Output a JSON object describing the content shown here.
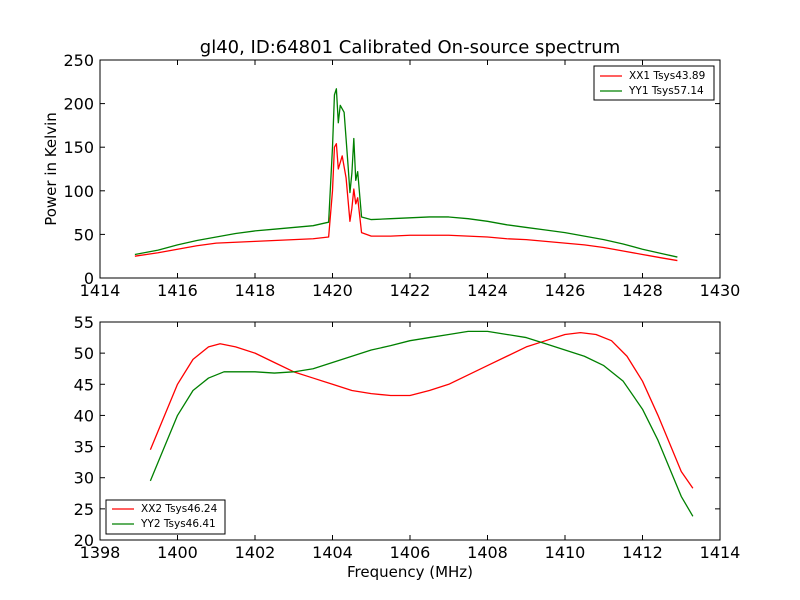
{
  "chart_data": [
    {
      "type": "line",
      "title": "gl40, ID:64801 Calibrated On-source spectrum",
      "xlabel": "",
      "ylabel": "Power in Kelvin",
      "xlim": [
        1414,
        1430
      ],
      "ylim": [
        0,
        250
      ],
      "xticks": [
        1414,
        1416,
        1418,
        1420,
        1422,
        1424,
        1426,
        1428,
        1430
      ],
      "yticks": [
        0,
        50,
        100,
        150,
        200,
        250
      ],
      "grid": false,
      "legend": "top-right",
      "series": [
        {
          "name": "XX1 Tsys43.89",
          "color": "#ff0000",
          "points": [
            [
              1414.9,
              25
            ],
            [
              1415.5,
              29
            ],
            [
              1416.0,
              33
            ],
            [
              1416.5,
              37
            ],
            [
              1417.0,
              40
            ],
            [
              1417.5,
              41
            ],
            [
              1418.0,
              42
            ],
            [
              1418.5,
              43
            ],
            [
              1419.0,
              44
            ],
            [
              1419.5,
              45
            ],
            [
              1419.9,
              47
            ],
            [
              1420.0,
              100
            ],
            [
              1420.05,
              150
            ],
            [
              1420.1,
              154
            ],
            [
              1420.15,
              125
            ],
            [
              1420.25,
              140
            ],
            [
              1420.35,
              115
            ],
            [
              1420.45,
              65
            ],
            [
              1420.5,
              80
            ],
            [
              1420.55,
              102
            ],
            [
              1420.6,
              85
            ],
            [
              1420.65,
              92
            ],
            [
              1420.75,
              52
            ],
            [
              1421.0,
              48
            ],
            [
              1421.5,
              48
            ],
            [
              1422.0,
              49
            ],
            [
              1422.5,
              49
            ],
            [
              1423.0,
              49
            ],
            [
              1423.5,
              48
            ],
            [
              1424.0,
              47
            ],
            [
              1424.5,
              45
            ],
            [
              1425.0,
              44
            ],
            [
              1425.5,
              42
            ],
            [
              1426.0,
              40
            ],
            [
              1426.5,
              38
            ],
            [
              1427.0,
              35
            ],
            [
              1427.5,
              31
            ],
            [
              1428.0,
              27
            ],
            [
              1428.5,
              23
            ],
            [
              1428.9,
              20
            ]
          ]
        },
        {
          "name": "YY1 Tsys57.14",
          "color": "#008000",
          "points": [
            [
              1414.9,
              27
            ],
            [
              1415.5,
              32
            ],
            [
              1416.0,
              38
            ],
            [
              1416.5,
              43
            ],
            [
              1417.0,
              47
            ],
            [
              1417.5,
              51
            ],
            [
              1418.0,
              54
            ],
            [
              1418.5,
              56
            ],
            [
              1419.0,
              58
            ],
            [
              1419.5,
              60
            ],
            [
              1419.9,
              64
            ],
            [
              1420.0,
              150
            ],
            [
              1420.05,
              210
            ],
            [
              1420.1,
              217
            ],
            [
              1420.15,
              178
            ],
            [
              1420.2,
              198
            ],
            [
              1420.3,
              190
            ],
            [
              1420.4,
              130
            ],
            [
              1420.45,
              98
            ],
            [
              1420.5,
              120
            ],
            [
              1420.55,
              160
            ],
            [
              1420.6,
              112
            ],
            [
              1420.65,
              122
            ],
            [
              1420.75,
              70
            ],
            [
              1421.0,
              67
            ],
            [
              1421.5,
              68
            ],
            [
              1422.0,
              69
            ],
            [
              1422.5,
              70
            ],
            [
              1423.0,
              70
            ],
            [
              1423.5,
              68
            ],
            [
              1424.0,
              65
            ],
            [
              1424.5,
              61
            ],
            [
              1425.0,
              58
            ],
            [
              1425.5,
              55
            ],
            [
              1426.0,
              52
            ],
            [
              1426.5,
              48
            ],
            [
              1427.0,
              44
            ],
            [
              1427.5,
              39
            ],
            [
              1428.0,
              33
            ],
            [
              1428.5,
              28
            ],
            [
              1428.9,
              24
            ]
          ]
        }
      ]
    },
    {
      "type": "line",
      "title": "",
      "xlabel": "Frequency (MHz)",
      "ylabel": "",
      "xlim": [
        1398,
        1414
      ],
      "ylim": [
        20,
        55
      ],
      "xticks": [
        1398,
        1400,
        1402,
        1404,
        1406,
        1408,
        1410,
        1412,
        1414
      ],
      "yticks": [
        20,
        25,
        30,
        35,
        40,
        45,
        50,
        55
      ],
      "grid": false,
      "legend": "bottom-left",
      "series": [
        {
          "name": "XX2 Tsys46.24",
          "color": "#ff0000",
          "points": [
            [
              1399.3,
              34.5
            ],
            [
              1399.6,
              39
            ],
            [
              1400.0,
              45
            ],
            [
              1400.4,
              49
            ],
            [
              1400.8,
              51
            ],
            [
              1401.1,
              51.5
            ],
            [
              1401.5,
              51
            ],
            [
              1402.0,
              50
            ],
            [
              1402.5,
              48.5
            ],
            [
              1403.0,
              47
            ],
            [
              1403.5,
              46
            ],
            [
              1404.0,
              45
            ],
            [
              1404.5,
              44
            ],
            [
              1405.0,
              43.5
            ],
            [
              1405.5,
              43.2
            ],
            [
              1406.0,
              43.2
            ],
            [
              1406.5,
              44
            ],
            [
              1407.0,
              45
            ],
            [
              1407.5,
              46.5
            ],
            [
              1408.0,
              48
            ],
            [
              1408.5,
              49.5
            ],
            [
              1409.0,
              51
            ],
            [
              1409.5,
              52
            ],
            [
              1410.0,
              53
            ],
            [
              1410.4,
              53.3
            ],
            [
              1410.8,
              53
            ],
            [
              1411.2,
              52
            ],
            [
              1411.6,
              49.5
            ],
            [
              1412.0,
              45.5
            ],
            [
              1412.4,
              40
            ],
            [
              1412.8,
              34
            ],
            [
              1413.0,
              31
            ],
            [
              1413.3,
              28.3
            ]
          ]
        },
        {
          "name": "YY2 Tsys46.41",
          "color": "#008000",
          "points": [
            [
              1399.3,
              29.5
            ],
            [
              1399.6,
              34
            ],
            [
              1400.0,
              40
            ],
            [
              1400.4,
              44
            ],
            [
              1400.8,
              46
            ],
            [
              1401.2,
              47
            ],
            [
              1401.6,
              47
            ],
            [
              1402.0,
              47
            ],
            [
              1402.5,
              46.8
            ],
            [
              1403.0,
              47
            ],
            [
              1403.5,
              47.5
            ],
            [
              1404.0,
              48.5
            ],
            [
              1404.5,
              49.5
            ],
            [
              1405.0,
              50.5
            ],
            [
              1405.5,
              51.2
            ],
            [
              1406.0,
              52
            ],
            [
              1406.5,
              52.5
            ],
            [
              1407.0,
              53
            ],
            [
              1407.5,
              53.5
            ],
            [
              1408.0,
              53.5
            ],
            [
              1408.5,
              53
            ],
            [
              1409.0,
              52.5
            ],
            [
              1409.5,
              51.5
            ],
            [
              1410.0,
              50.5
            ],
            [
              1410.5,
              49.5
            ],
            [
              1411.0,
              48
            ],
            [
              1411.5,
              45.5
            ],
            [
              1412.0,
              41
            ],
            [
              1412.4,
              36
            ],
            [
              1412.8,
              30
            ],
            [
              1413.0,
              27
            ],
            [
              1413.3,
              23.8
            ]
          ]
        }
      ]
    }
  ]
}
